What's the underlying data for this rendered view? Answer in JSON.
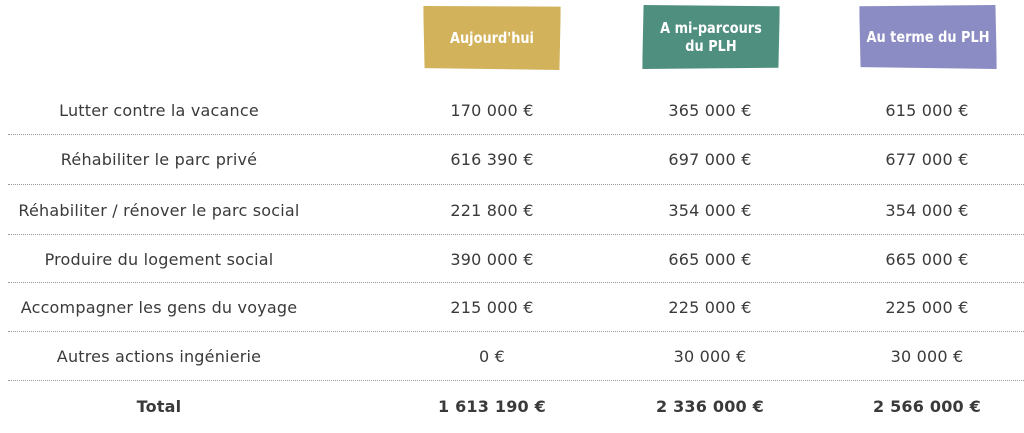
{
  "headers": {
    "col1": [
      "Aujourd'hui"
    ],
    "col2": [
      "A mi-parcours",
      "du PLH"
    ],
    "col3": [
      "Au terme du PLH"
    ]
  },
  "colors": {
    "col1": "#d2b25b",
    "col2": "#4f8f7f",
    "col3": "#8b8cc3"
  },
  "rows": [
    {
      "label": "Lutter contre la vacance",
      "v1": "170 000 €",
      "v2": "365 000 €",
      "v3": "615 000 €"
    },
    {
      "label": "Réhabiliter le parc privé",
      "v1": "616 390 €",
      "v2": "697 000 €",
      "v3": "677 000 €"
    },
    {
      "label": "Réhabiliter / rénover le parc social",
      "v1": "221 800 €",
      "v2": "354 000 €",
      "v3": "354 000 €"
    },
    {
      "label": "Produire du logement social",
      "v1": "390 000 €",
      "v2": "665 000 €",
      "v3": "665 000 €"
    },
    {
      "label": "Accompagner les gens du voyage",
      "v1": "215 000 €",
      "v2": "225 000 €",
      "v3": "225 000 €"
    },
    {
      "label": "Autres actions ingénierie",
      "v1": "0 €",
      "v2": "30 000 €",
      "v3": "30 000 €"
    }
  ],
  "total": {
    "label": "Total",
    "v1": "1 613 190 €",
    "v2": "2 336 000 €",
    "v3": "2 566 000 €"
  }
}
